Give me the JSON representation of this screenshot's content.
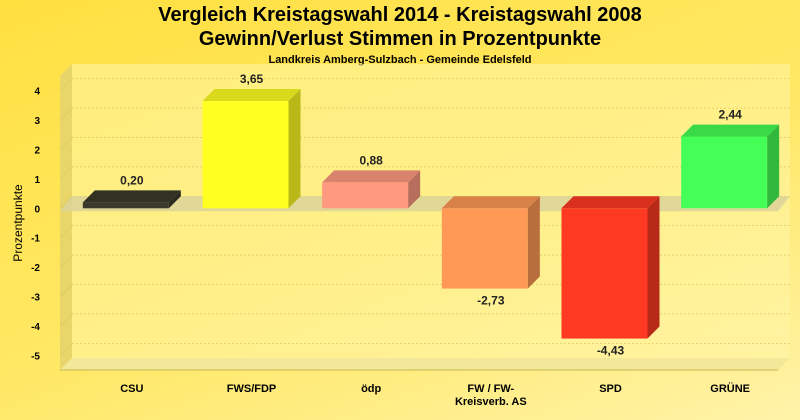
{
  "chart_data": {
    "type": "bar",
    "title": "Vergleich Kreistagswahl 2014 - Kreistagswahl 2008",
    "subtitle": "Gewinn/Verlust Stimmen in Prozentpunkte",
    "subsubtitle": "Landkreis Amberg-Sulzbach - Gemeinde Edelsfeld",
    "ylabel": "Prozentpunkte",
    "xlabel": "",
    "ylim": [
      -5.5,
      4.5
    ],
    "yticks": [
      4,
      3,
      2,
      1,
      0,
      -1,
      -2,
      -3,
      -4,
      -5
    ],
    "grid": true,
    "categories": [
      "CSU",
      "FWS/FDP",
      "ödp",
      "FW / FW-\nKreisverb. AS",
      "SPD",
      "GRÜNE"
    ],
    "category_lines": [
      [
        "CSU"
      ],
      [
        "FWS/FDP"
      ],
      [
        "ödp"
      ],
      [
        "FW / FW-",
        "Kreisverb. AS"
      ],
      [
        "SPD"
      ],
      [
        "GRÜNE"
      ]
    ],
    "values": [
      0.2,
      3.65,
      0.88,
      -2.73,
      -4.43,
      2.44
    ],
    "value_labels": [
      "0,20",
      "3,65",
      "0,88",
      "-2,73",
      "-4,43",
      "2,44"
    ],
    "colors": [
      "#3a3a2a",
      "#ffff22",
      "#ff9980",
      "#ff9955",
      "#ff3a22",
      "#44ff55"
    ]
  }
}
